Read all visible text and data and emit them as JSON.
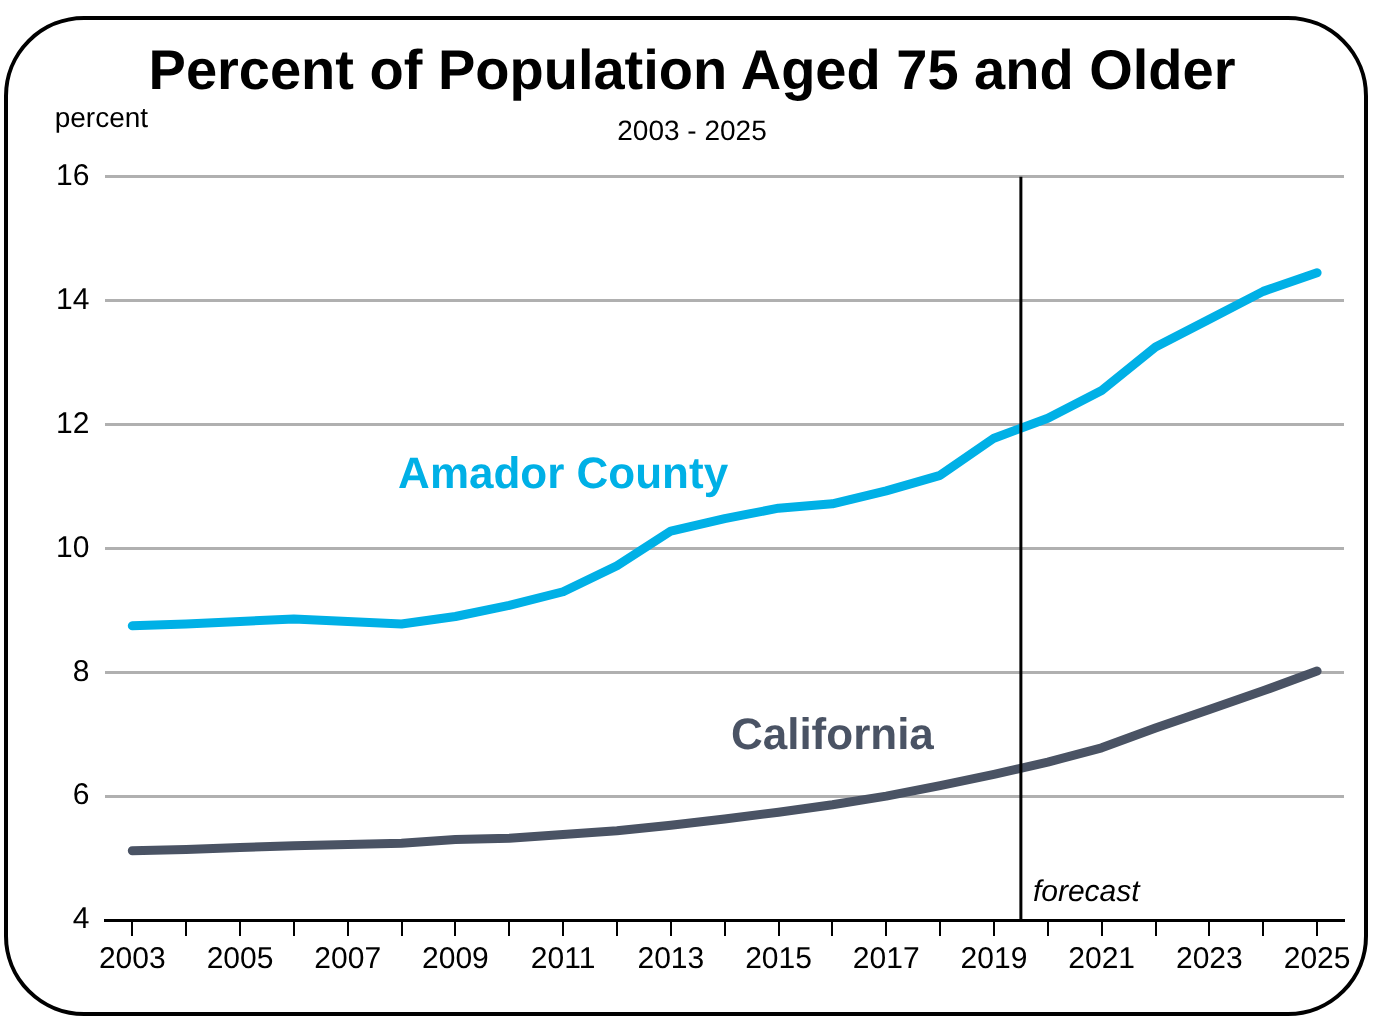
{
  "chart_data": {
    "type": "line",
    "title": "Percent of Population Aged 75 and Older",
    "subtitle": "2003 - 2025",
    "ylabel": "percent",
    "x": [
      2003,
      2004,
      2005,
      2006,
      2007,
      2008,
      2009,
      2010,
      2011,
      2012,
      2013,
      2014,
      2015,
      2016,
      2017,
      2018,
      2019,
      2020,
      2021,
      2022,
      2023,
      2024,
      2025
    ],
    "series": [
      {
        "name": "Amador County",
        "color": "#00b0e6",
        "values": [
          8.75,
          8.78,
          8.82,
          8.86,
          8.82,
          8.78,
          8.9,
          9.08,
          9.3,
          9.72,
          10.28,
          10.48,
          10.65,
          10.72,
          10.93,
          11.18,
          11.78,
          12.1,
          12.55,
          13.25,
          13.7,
          14.15,
          14.45
        ]
      },
      {
        "name": "California",
        "color": "#4a5364",
        "values": [
          5.12,
          5.14,
          5.17,
          5.2,
          5.22,
          5.24,
          5.3,
          5.32,
          5.38,
          5.44,
          5.53,
          5.63,
          5.74,
          5.86,
          6.0,
          6.17,
          6.35,
          6.55,
          6.78,
          7.1,
          7.4,
          7.7,
          8.02
        ]
      }
    ],
    "xlim": [
      2002.5,
      2025.5
    ],
    "xticks": [
      2003,
      {
        "value": 2004,
        "label": null
      },
      2005,
      {
        "value": 2006,
        "label": null
      },
      2007,
      {
        "value": 2008,
        "label": null
      },
      2009,
      {
        "value": 2010,
        "label": null
      },
      2011,
      {
        "value": 2012,
        "label": null
      },
      2013,
      {
        "value": 2014,
        "label": null
      },
      2015,
      {
        "value": 2016,
        "label": null
      },
      2017,
      {
        "value": 2018,
        "label": null
      },
      2019,
      {
        "value": 2020,
        "label": null
      },
      2021,
      {
        "value": 2022,
        "label": null
      },
      2023,
      {
        "value": 2024,
        "label": null
      },
      2025
    ],
    "ylim": [
      4,
      16
    ],
    "yticks": [
      4,
      6,
      8,
      10,
      12,
      14,
      16
    ],
    "ref_lines": [
      {
        "axis": "x",
        "value": 2019.5,
        "label": "forecast",
        "color": "#000000"
      }
    ],
    "grid": "y",
    "legend": false,
    "marker": "none",
    "line_style": "solid"
  }
}
